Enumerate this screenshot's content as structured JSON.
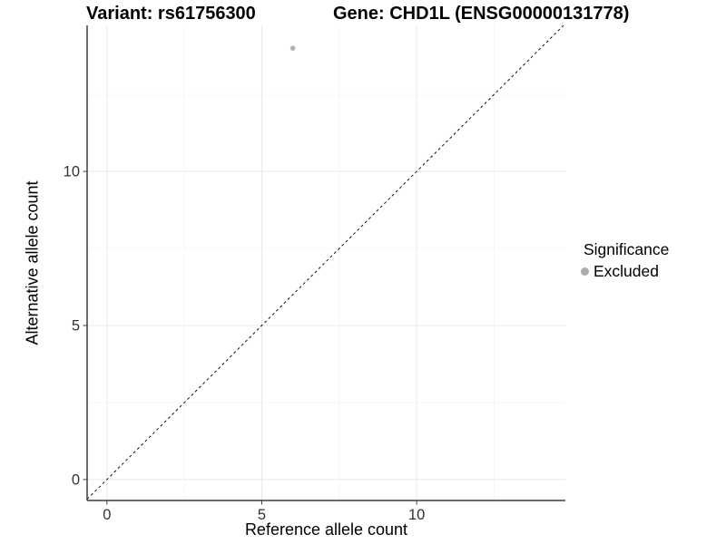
{
  "chart_data": {
    "type": "scatter",
    "title_variant": "Variant: rs61756300",
    "title_gene": "Gene: CHD1L (ENSG00000131778)",
    "xlabel": "Reference allele count",
    "ylabel": "Alternative allele count",
    "xlim": [
      -0.64,
      14.8
    ],
    "ylim": [
      -0.68,
      14.74
    ],
    "x_ticks": {
      "values": [
        0,
        5,
        10
      ],
      "labels": [
        "0",
        "5",
        "10"
      ]
    },
    "y_ticks": {
      "values": [
        0,
        5,
        10
      ],
      "labels": [
        "0",
        "5",
        "10"
      ]
    },
    "x_minor": [
      2.5,
      7.5,
      12.5
    ],
    "y_minor": [
      2.5,
      7.5,
      12.5
    ],
    "grid": "major+minor",
    "points": [
      {
        "x": 6,
        "y": 14,
        "series": "Excluded"
      }
    ],
    "reference_line": {
      "type": "identity",
      "slope": 1,
      "intercept": 0,
      "style": "dashed",
      "color": "#111111"
    },
    "legend": {
      "position": "right",
      "title": "Significance",
      "entries": [
        {
          "label": "Excluded",
          "marker": "circle-icon",
          "color": "#adadad"
        }
      ]
    },
    "colors": {
      "point": "#b2b2b2",
      "legend_marker": "#a8a8a8",
      "grid_major": "#e8e8e8",
      "grid_minor": "#f4f4f4",
      "axis": "#3f3f3f",
      "tick_label": "#333333",
      "title_text": "#000000"
    }
  }
}
